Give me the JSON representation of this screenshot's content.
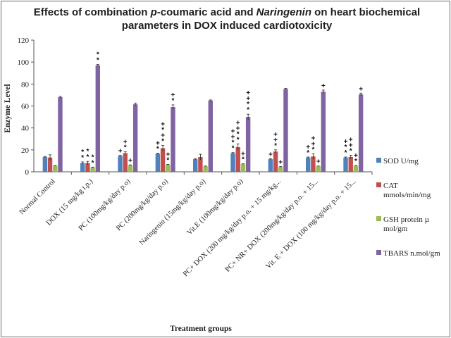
{
  "chart_data": {
    "type": "bar",
    "title_line1_parts": [
      {
        "text": "Effects of combination ",
        "italic": false
      },
      {
        "text": "p",
        "italic": true
      },
      {
        "text": "-coumaric acid and ",
        "italic": false
      },
      {
        "text": "Naringenin",
        "italic": true
      },
      {
        "text": " on heart biochemical",
        "italic": false
      }
    ],
    "title_line2": "parameters in DOX induced cardiotoxicity",
    "xlabel": "Treatment groups",
    "ylabel": "Enzyme Level",
    "ylim": [
      0,
      120
    ],
    "yticks": [
      0,
      20,
      40,
      60,
      80,
      100,
      120
    ],
    "grid": false,
    "legend_position": "right",
    "categories": [
      "Normal Control",
      "DOX    (15    mg/kg i.p.)",
      "PC (100mg/kg/day p.o)",
      "PC (200mg/kg/day p.o)",
      "Naringenin (15mg/kg/day p.o)",
      "Vit.E (100mg/kg/day p.o)",
      "PC+ DOX (200 mg/kg/day p.o. + 15 mg/kg...",
      "PC+ NR+ DOX (200mg/kg/day p.o. + 15...",
      "Vit. E + DOX (100 mg/kg/day p.o. + 15..."
    ],
    "series": [
      {
        "name": "SOD  U/mg",
        "color": "#4f81bd",
        "values": [
          13.5,
          8,
          14.5,
          16.5,
          11.5,
          17,
          11.5,
          13,
          13
        ],
        "errors": [
          0.5,
          1,
          0.5,
          0.5,
          0.5,
          0.5,
          0.5,
          0.5,
          0.5
        ]
      },
      {
        "name": "CAT mmols/min/mg",
        "color": "#c0504d",
        "values": [
          13,
          8,
          17,
          21.5,
          13.5,
          22.5,
          18.5,
          14,
          13.5
        ],
        "errors": [
          2.5,
          1.5,
          1.2,
          2.5,
          2.5,
          3,
          1.5,
          2.5,
          1.5
        ]
      },
      {
        "name": "GSH protein µ mol/gm",
        "color": "#9bbb59",
        "values": [
          5.5,
          4,
          6,
          6.5,
          5,
          7,
          4.5,
          5,
          5.5
        ],
        "errors": [
          0.3,
          0.3,
          0.3,
          0.3,
          0.3,
          0.3,
          0.3,
          0.3,
          0.3
        ]
      },
      {
        "name": "TBARS n.mol/gm",
        "color": "#8064a2",
        "values": [
          68,
          97,
          61.5,
          59,
          65,
          50,
          75.5,
          73,
          70.5
        ],
        "errors": [
          0.8,
          0.8,
          1.2,
          2,
          0.5,
          2.5,
          0.5,
          1.5,
          1.2
        ]
      }
    ],
    "significance_marks": [
      {
        "group": 1,
        "series": 0,
        "text": "**"
      },
      {
        "group": 1,
        "series": 1,
        "text": "**"
      },
      {
        "group": 1,
        "series": 2,
        "text": "**"
      },
      {
        "group": 1,
        "series": 3,
        "text": "**"
      },
      {
        "group": 2,
        "series": 0,
        "text": "+"
      },
      {
        "group": 2,
        "series": 1,
        "text": "*+"
      },
      {
        "group": 2,
        "series": 2,
        "text": "+"
      },
      {
        "group": 3,
        "series": 0,
        "text": "*+"
      },
      {
        "group": 3,
        "series": 1,
        "text": "*+*+"
      },
      {
        "group": 3,
        "series": 2,
        "text": "*+"
      },
      {
        "group": 3,
        "series": 3,
        "text": "*+"
      },
      {
        "group": 5,
        "series": 0,
        "text": "**++"
      },
      {
        "group": 5,
        "series": 1,
        "text": "**++"
      },
      {
        "group": 5,
        "series": 2,
        "text": "*+"
      },
      {
        "group": 5,
        "series": 3,
        "text": "**++"
      },
      {
        "group": 6,
        "series": 0,
        "text": "+"
      },
      {
        "group": 6,
        "series": 1,
        "text": "*++"
      },
      {
        "group": 6,
        "series": 2,
        "text": "+"
      },
      {
        "group": 7,
        "series": 0,
        "text": "*+"
      },
      {
        "group": 7,
        "series": 1,
        "text": "*++"
      },
      {
        "group": 7,
        "series": 2,
        "text": "+"
      },
      {
        "group": 7,
        "series": 3,
        "text": "+"
      },
      {
        "group": 8,
        "series": 0,
        "text": "**+"
      },
      {
        "group": 8,
        "series": 1,
        "text": "*++"
      },
      {
        "group": 8,
        "series": 2,
        "text": "*+"
      },
      {
        "group": 8,
        "series": 3,
        "text": "+"
      }
    ]
  }
}
